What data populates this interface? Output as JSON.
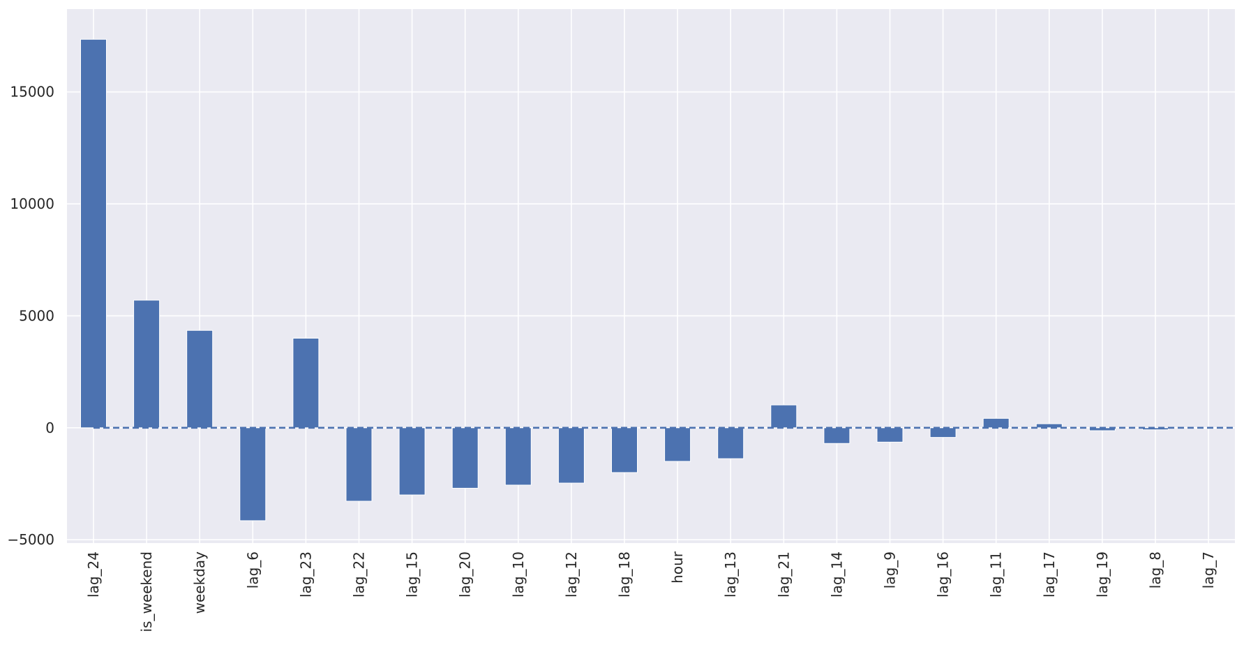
{
  "chart_data": {
    "type": "bar",
    "title": "",
    "xlabel": "",
    "ylabel": "",
    "categories": [
      "lag_24",
      "is_weekend",
      "weekday",
      "lag_6",
      "lag_23",
      "lag_22",
      "lag_15",
      "lag_20",
      "lag_10",
      "lag_12",
      "lag_18",
      "hour",
      "lag_13",
      "lag_21",
      "lag_14",
      "lag_9",
      "lag_16",
      "lag_11",
      "lag_17",
      "lag_19",
      "lag_8",
      "lag_7"
    ],
    "values": [
      17350,
      5700,
      4350,
      -4150,
      4000,
      -3280,
      -3000,
      -2700,
      -2560,
      -2470,
      -2000,
      -1500,
      -1380,
      1020,
      -700,
      -640,
      -430,
      420,
      180,
      -130,
      -90,
      -20
    ],
    "ylim": [
      -5150,
      18700
    ],
    "yticks": [
      -5000,
      0,
      5000,
      10000,
      15000
    ],
    "grid": true,
    "legend": "none",
    "reference_line": {
      "y": 0,
      "style": "dashed"
    },
    "colors": {
      "bar": "#4c72b0",
      "bar_edge": "#ffffff",
      "reference_line": "#4c72b0",
      "plot_background": "#eaeaf2",
      "grid": "#ffffff",
      "text": "#262626"
    }
  }
}
